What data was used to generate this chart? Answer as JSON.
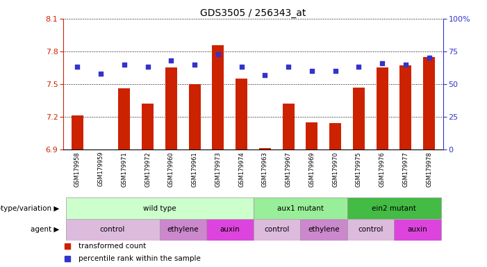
{
  "title": "GDS3505 / 256343_at",
  "samples": [
    "GSM179958",
    "GSM179959",
    "GSM179971",
    "GSM179972",
    "GSM179960",
    "GSM179961",
    "GSM179973",
    "GSM179974",
    "GSM179963",
    "GSM179967",
    "GSM179969",
    "GSM179970",
    "GSM179975",
    "GSM179976",
    "GSM179977",
    "GSM179978"
  ],
  "bar_values": [
    7.21,
    6.9,
    7.46,
    7.32,
    7.65,
    7.5,
    7.86,
    7.55,
    6.91,
    7.32,
    7.15,
    7.14,
    7.47,
    7.65,
    7.67,
    7.75
  ],
  "dot_values": [
    63,
    58,
    65,
    63,
    68,
    65,
    73,
    63,
    57,
    63,
    60,
    60,
    63,
    66,
    65,
    70
  ],
  "ylim_left": [
    6.9,
    8.1
  ],
  "ylim_right": [
    0,
    100
  ],
  "yticks_left": [
    6.9,
    7.2,
    7.5,
    7.8,
    8.1
  ],
  "yticks_right": [
    0,
    25,
    50,
    75,
    100
  ],
  "ytick_labels_right": [
    "0",
    "25",
    "50",
    "75",
    "100%"
  ],
  "bar_color": "#cc2200",
  "dot_color": "#3333cc",
  "genotype_groups": [
    {
      "label": "wild type",
      "start": 0,
      "end": 8,
      "color": "#ccffcc"
    },
    {
      "label": "aux1 mutant",
      "start": 8,
      "end": 12,
      "color": "#99ee99"
    },
    {
      "label": "ein2 mutant",
      "start": 12,
      "end": 16,
      "color": "#44bb44"
    }
  ],
  "agent_groups": [
    {
      "label": "control",
      "start": 0,
      "end": 4,
      "color": "#ddbbdd"
    },
    {
      "label": "ethylene",
      "start": 4,
      "end": 6,
      "color": "#cc88cc"
    },
    {
      "label": "auxin",
      "start": 6,
      "end": 8,
      "color": "#dd44dd"
    },
    {
      "label": "control",
      "start": 8,
      "end": 10,
      "color": "#ddbbdd"
    },
    {
      "label": "ethylene",
      "start": 10,
      "end": 12,
      "color": "#cc88cc"
    },
    {
      "label": "control",
      "start": 12,
      "end": 14,
      "color": "#ddbbdd"
    },
    {
      "label": "auxin",
      "start": 14,
      "end": 16,
      "color": "#dd44dd"
    }
  ],
  "legend_items": [
    {
      "label": "transformed count",
      "color": "#cc2200"
    },
    {
      "label": "percentile rank within the sample",
      "color": "#3333cc"
    }
  ],
  "genotype_label": "genotype/variation",
  "agent_label": "agent"
}
